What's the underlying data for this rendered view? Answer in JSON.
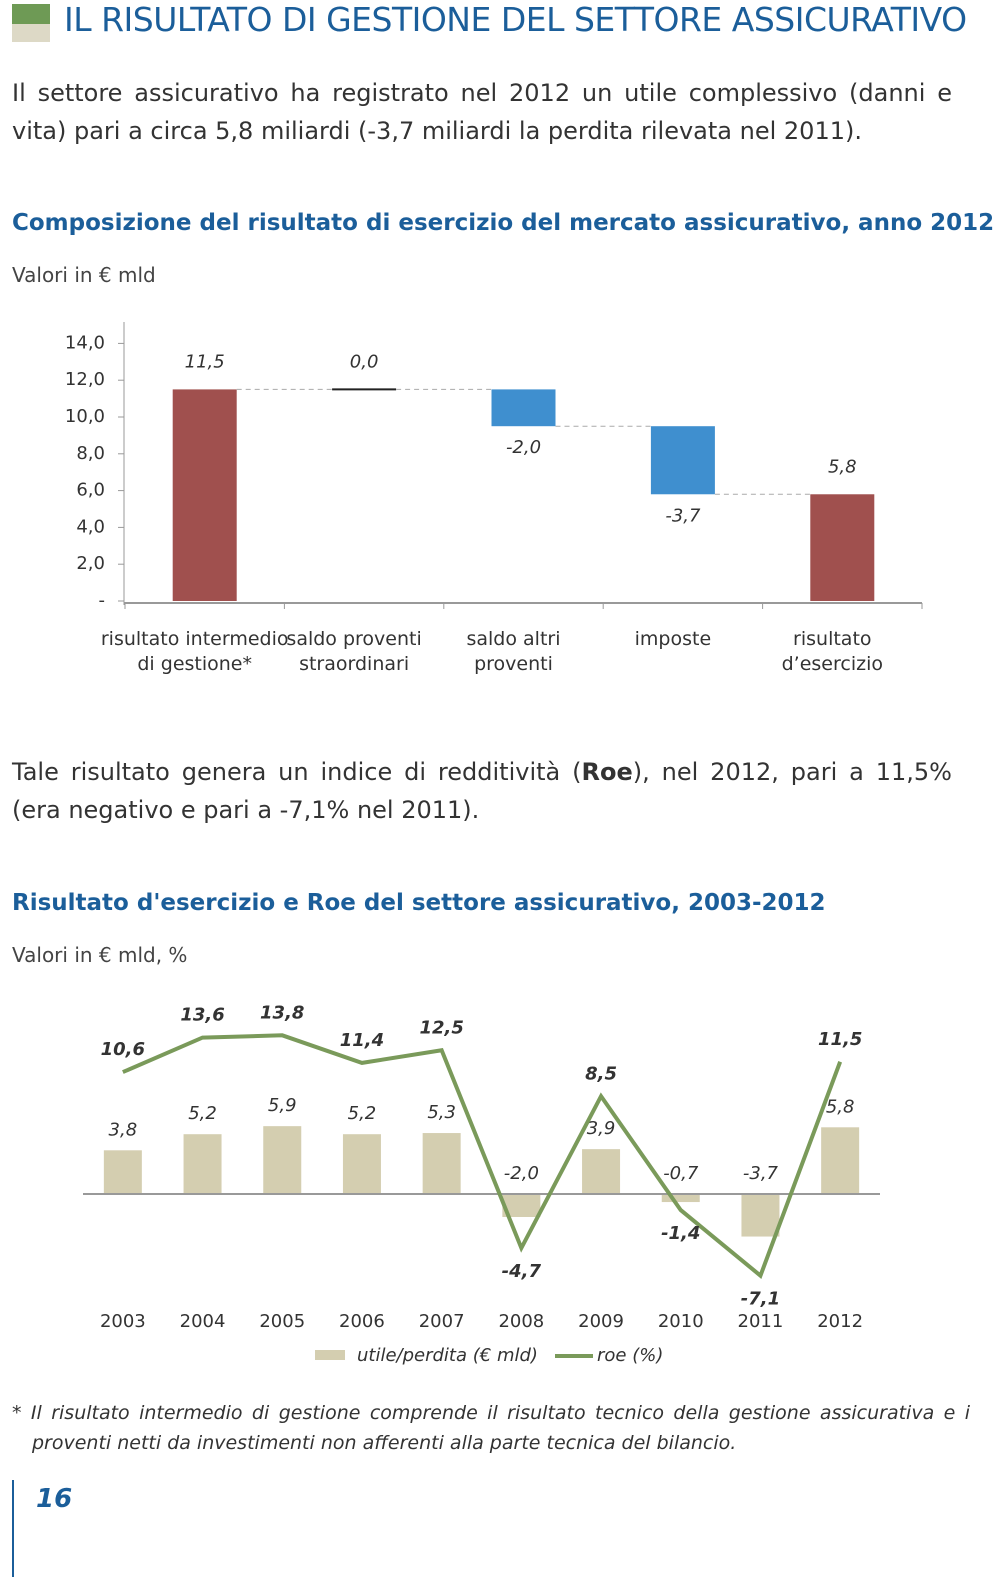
{
  "header": {
    "title": "IL RISULTATO DI GESTIONE DEL SETTORE ASSICURATIVO"
  },
  "paragraphs": [
    [
      "Il settore assicurativo ha registrato nel 2012 un utile complessivo (danni e vita) pari a circa 5,8 miliardi (-3,7 miliardi la perdita rilevata nel 2011)."
    ],
    [
      "Tale risultato genera un indice di redditività (",
      "Roe",
      "), nel 2012, pari a 11,5% (era negativo e pari a -7,1% nel 2011)."
    ]
  ],
  "chart_data": [
    {
      "type": "waterfall",
      "title": "Composizione del risultato di esercizio del mercato assicurativo, anno 2012",
      "subtitle": "Valori in € mld",
      "categories": [
        "risultato intermedio\ndi gestione*",
        "saldo proventi\nstraordinari",
        "saldo altri\nproventi",
        "imposte",
        "risultato\nd’esercizio"
      ],
      "values": [
        11.5,
        0.0,
        -2.0,
        -3.7,
        5.8
      ],
      "value_labels": [
        "11,5",
        "0,0",
        "-2,0",
        "-3,7",
        "5,8"
      ],
      "measures": [
        "total",
        "relative",
        "relative",
        "relative",
        "total"
      ],
      "colors": [
        "#a0504e",
        "#222222",
        "#3f8fcf",
        "#3f8fcf",
        "#a0504e"
      ],
      "ylim": [
        0,
        15
      ],
      "yticks": [
        {
          "value": 0,
          "label": "-"
        },
        {
          "value": 2,
          "label": "2,0"
        },
        {
          "value": 4,
          "label": "4,0"
        },
        {
          "value": 6,
          "label": "6,0"
        },
        {
          "value": 8,
          "label": "8,0"
        },
        {
          "value": 10,
          "label": "10,0"
        },
        {
          "value": 12,
          "label": "12,0"
        },
        {
          "value": 14,
          "label": "14,0"
        }
      ]
    },
    {
      "type": "bar-line",
      "title": "Risultato d'esercizio e Roe del settore assicurativo, 2003-2012",
      "subtitle": "Valori in € mld, %",
      "categories": [
        "2003",
        "2004",
        "2005",
        "2006",
        "2007",
        "2008",
        "2009",
        "2010",
        "2011",
        "2012"
      ],
      "ylim": [
        -8,
        17
      ],
      "series": [
        {
          "name": "utile/perdita (€ mld)",
          "type": "bar",
          "color": "#d4ceb0",
          "values": [
            3.8,
            5.2,
            5.9,
            5.2,
            5.3,
            -2.0,
            3.9,
            -0.7,
            -3.7,
            5.8
          ],
          "value_labels": [
            "3,8",
            "5,2",
            "5,9",
            "5,2",
            "5,3",
            "-2,0",
            "3,9",
            "-0,7",
            "-3,7",
            "5,8"
          ]
        },
        {
          "name": "roe (%)",
          "type": "line",
          "color": "#7a9a5a",
          "values": [
            10.6,
            13.6,
            13.8,
            11.4,
            12.5,
            -4.7,
            8.5,
            -1.4,
            -7.1,
            11.5
          ],
          "value_labels": [
            "10,6",
            "13,6",
            "13,8",
            "11,4",
            "12,5",
            "-4,7",
            "8,5",
            "-1,4",
            "-7,1",
            "11,5"
          ]
        }
      ]
    }
  ],
  "footnote": "* Il risultato intermedio di gestione comprende il risultato tecnico della gestione assicurativa e i proventi netti da investimenti non afferenti alla parte tecnica del bilancio.",
  "page_number": "16"
}
